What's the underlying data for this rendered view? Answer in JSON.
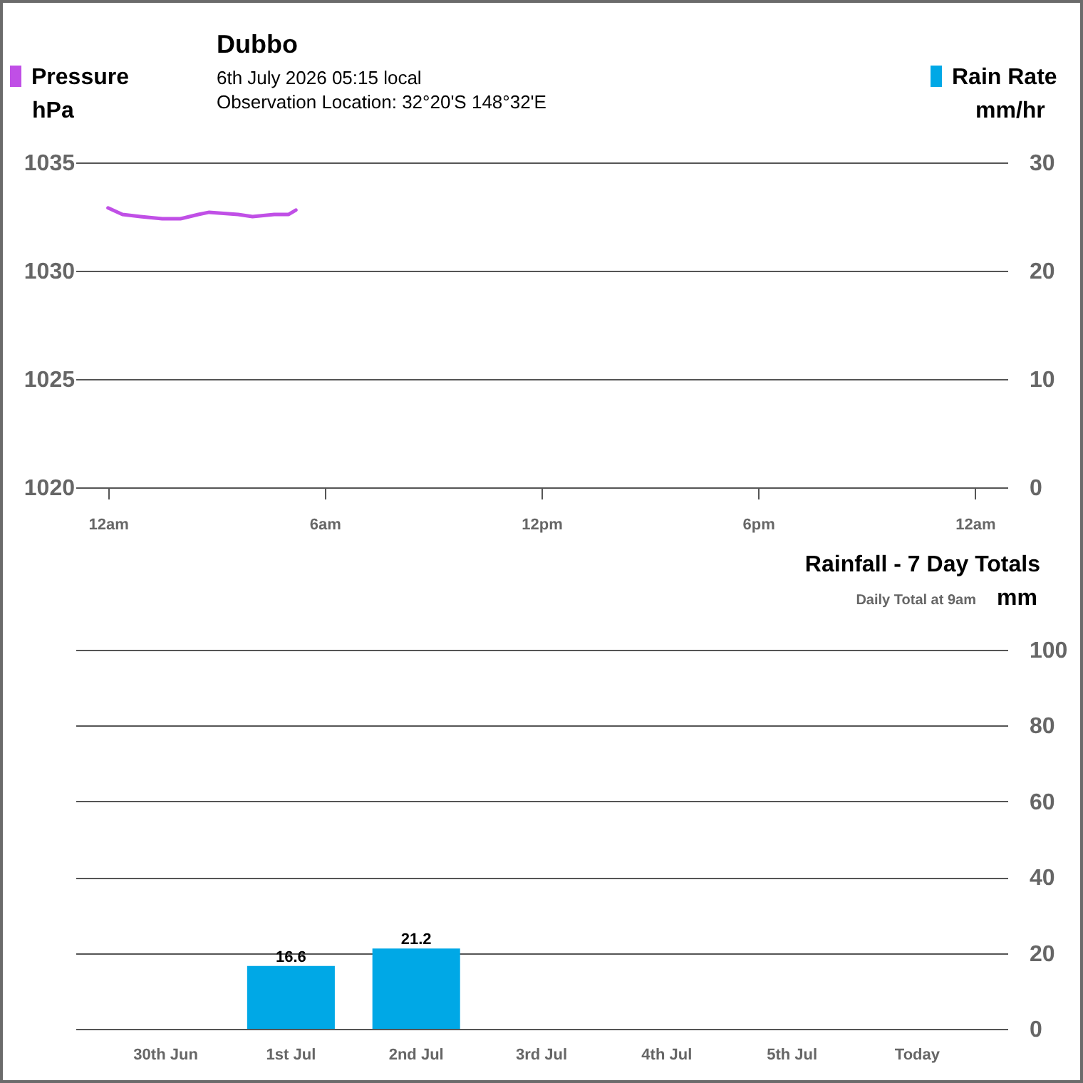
{
  "chart_data": [
    {
      "type": "line",
      "title": "Dubbo",
      "subtitle": "6th July 2026  05:15 local",
      "annotations": [
        "Observation Location: 32°20'S 148°32'E"
      ],
      "ylabel": "hPa",
      "y2label": "mm/hr",
      "x": [
        "2026-07-06T00:00",
        "2026-07-06T00:24",
        "2026-07-06T00:54",
        "2026-07-06T01:30",
        "2026-07-06T02:00",
        "2026-07-06T02:30",
        "2026-07-06T02:48",
        "2026-07-06T03:36",
        "2026-07-06T04:00",
        "2026-07-06T04:36",
        "2026-07-06T05:00",
        "2026-07-06T05:12"
      ],
      "series": [
        {
          "name": "Pressure",
          "color": "#c04fe6",
          "values": [
            1032.9,
            1032.6,
            1032.5,
            1032.4,
            1032.4,
            1032.6,
            1032.7,
            1032.6,
            1032.5,
            1032.6,
            1032.6,
            1032.8
          ]
        },
        {
          "name": "Rain Rate",
          "color": "#00a8e6",
          "axis": "y2",
          "values": [
            null,
            null,
            null,
            null,
            null,
            null,
            null,
            null,
            null,
            null,
            null,
            null
          ]
        }
      ],
      "xlim": [
        "2026-07-05T23:06",
        "2026-07-07T00:54"
      ],
      "xticks": [
        {
          "value": "2026-07-06T00:00",
          "label": "12am"
        },
        {
          "value": "2026-07-06T06:00",
          "label": "6am"
        },
        {
          "value": "2026-07-06T12:00",
          "label": "12pm"
        },
        {
          "value": "2026-07-06T18:00",
          "label": "6pm"
        },
        {
          "value": "2026-07-07T00:00",
          "label": "12am"
        }
      ],
      "ylim": [
        1020,
        1035
      ],
      "yticks": [
        1020,
        1025,
        1030,
        1035
      ],
      "y2lim": [
        0,
        30
      ],
      "y2ticks": [
        0,
        10,
        20,
        30
      ],
      "grid": "y",
      "legend": "top"
    },
    {
      "type": "bar",
      "title": "Rainfall - 7 Day Totals",
      "subtitle": "Daily Total at 9am",
      "ylabel": "mm",
      "categories": [
        "30th Jun",
        "1st Jul",
        "2nd Jul",
        "3rd Jul",
        "4th Jul",
        "5th Jul",
        "Today"
      ],
      "values": [
        0,
        16.6,
        21.2,
        0,
        0,
        0,
        0
      ],
      "color": "#00a8e6",
      "value_labels": [
        null,
        "16.6",
        "21.2",
        null,
        null,
        null,
        null
      ],
      "ylim": [
        0,
        100
      ],
      "yticks": [
        0,
        20,
        40,
        60,
        80,
        100
      ],
      "grid": "y"
    }
  ]
}
